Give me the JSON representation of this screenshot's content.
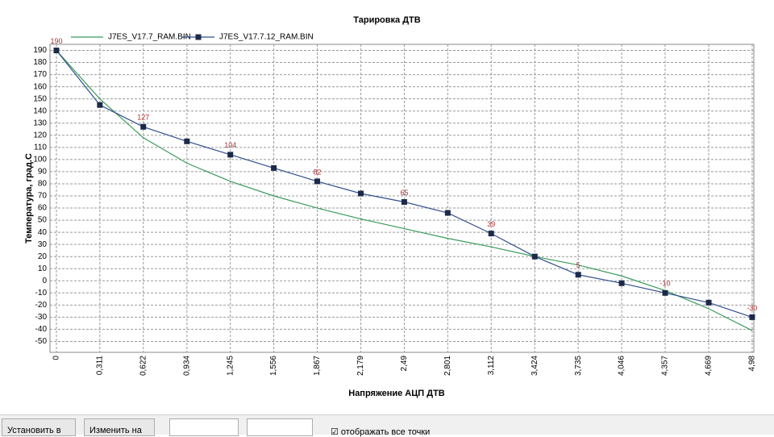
{
  "chart_data": {
    "type": "line",
    "title": "Тарировка ДТВ",
    "x_label": "Напряжение АЦП ДТВ",
    "y_label": "Температура, град.С",
    "x": [
      0,
      0.311,
      0.622,
      0.934,
      1.245,
      1.556,
      1.867,
      2.179,
      2.49,
      2.801,
      3.112,
      3.424,
      3.735,
      4.046,
      4.357,
      4.669,
      4.98
    ],
    "xlim": [
      -0.046,
      4.992
    ],
    "xticks": [
      {
        "value": 0,
        "label": "0"
      },
      {
        "value": 0.311,
        "label": "0,311"
      },
      {
        "value": 0.622,
        "label": "0,622"
      },
      {
        "value": 0.934,
        "label": "0,934"
      },
      {
        "value": 1.245,
        "label": "1,245"
      },
      {
        "value": 1.556,
        "label": "1,556"
      },
      {
        "value": 1.867,
        "label": "1,867"
      },
      {
        "value": 2.179,
        "label": "2,179"
      },
      {
        "value": 2.49,
        "label": "2,49"
      },
      {
        "value": 2.801,
        "label": "2,801"
      },
      {
        "value": 3.112,
        "label": "3,112"
      },
      {
        "value": 3.424,
        "label": "3,424"
      },
      {
        "value": 3.735,
        "label": "3,735"
      },
      {
        "value": 4.046,
        "label": "4,046"
      },
      {
        "value": 4.357,
        "label": "4,357"
      },
      {
        "value": 4.669,
        "label": "4,669"
      },
      {
        "value": 4.98,
        "label": "4,98"
      }
    ],
    "ylim": [
      -59,
      195
    ],
    "yticks": [
      -50,
      -40,
      -30,
      -20,
      -10,
      0,
      10,
      20,
      30,
      40,
      50,
      60,
      70,
      80,
      90,
      100,
      110,
      120,
      130,
      140,
      150,
      160,
      170,
      180,
      190
    ],
    "grid": true,
    "series": [
      {
        "name": "J7ES_V17.7_RAM.BIN",
        "color": "#3a9a5c",
        "markers": false,
        "values": [
          190,
          150,
          118,
          97,
          82,
          70,
          60,
          51,
          43,
          35,
          28,
          20,
          13,
          4,
          -8,
          -23,
          -41
        ]
      },
      {
        "name": "J7ES_V17.7.12_RAM.BIN",
        "color": "#2f4f8f",
        "markers": true,
        "values": [
          190,
          145,
          127,
          115,
          104,
          93,
          82,
          72,
          65,
          56,
          39,
          20,
          5,
          -2,
          -10,
          -18,
          -30
        ],
        "value_labels": [
          "190",
          null,
          "127",
          null,
          "104",
          null,
          "82",
          null,
          "65",
          null,
          "39",
          null,
          "5",
          null,
          "-10",
          null,
          "-30"
        ]
      }
    ]
  },
  "toolbar": {
    "set_button": "Установить в",
    "change_button": "Изменить на",
    "checkbox": "отображать все точки"
  }
}
